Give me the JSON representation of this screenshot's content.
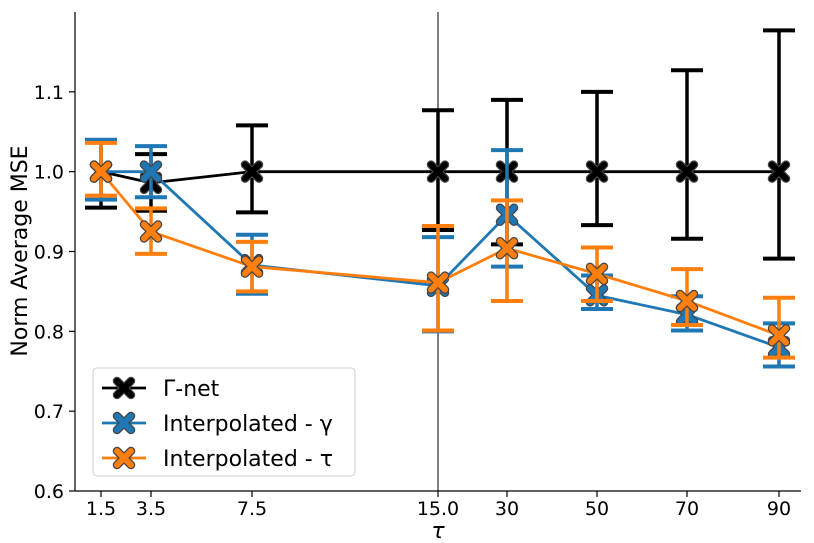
{
  "chart_data": {
    "type": "line",
    "title": "",
    "xlabel": "τ",
    "ylabel": "Norm Average MSE",
    "x_tick_labels": [
      "1.5",
      "3.5",
      "7.5",
      "15.0",
      "30",
      "50",
      "70",
      "90"
    ],
    "x_axis_note": "categorical positions; vertical divider at 15.0 separating two scales",
    "y_ticks": [
      "0.6",
      "0.7",
      "0.8",
      "0.9",
      "1.0",
      "1.1"
    ],
    "ylim": [
      0.6,
      1.2
    ],
    "grid": false,
    "legend_position": "bottom-left",
    "series": [
      {
        "name": "Γ-net",
        "color": "#000000",
        "x": [
          "1.5",
          "3.5",
          "7.5",
          "15.0",
          "30",
          "50",
          "70",
          "90"
        ],
        "values": [
          1.0,
          0.986,
          1.0,
          1.0,
          1.0,
          1.0,
          1.0,
          1.0
        ],
        "err_low": [
          0.955,
          0.951,
          0.949,
          0.927,
          0.909,
          0.933,
          0.916,
          0.891
        ],
        "err_high": [
          1.039,
          1.022,
          1.058,
          1.077,
          1.09,
          1.1,
          1.127,
          1.177
        ]
      },
      {
        "name": "Interpolated - γ",
        "color": "#1f77b4",
        "x": [
          "1.5",
          "3.5",
          "7.5",
          "15.0",
          "30",
          "50",
          "70",
          "90"
        ],
        "values": [
          1.0,
          1.0,
          0.883,
          0.857,
          0.946,
          0.845,
          0.821,
          0.78
        ],
        "err_low": [
          0.965,
          0.968,
          0.847,
          0.8,
          0.881,
          0.828,
          0.801,
          0.756
        ],
        "err_high": [
          1.04,
          1.032,
          0.921,
          0.918,
          1.027,
          0.87,
          0.844,
          0.81
        ]
      },
      {
        "name": "Interpolated - τ",
        "color": "#ff7f0e",
        "x": [
          "1.5",
          "3.5",
          "7.5",
          "15.0",
          "30",
          "50",
          "70",
          "90"
        ],
        "values": [
          1.0,
          0.925,
          0.881,
          0.861,
          0.904,
          0.872,
          0.838,
          0.795
        ],
        "err_low": [
          0.97,
          0.897,
          0.85,
          0.801,
          0.838,
          0.838,
          0.808,
          0.767
        ],
        "err_high": [
          1.036,
          0.954,
          0.912,
          0.932,
          0.964,
          0.905,
          0.878,
          0.842
        ]
      }
    ]
  }
}
